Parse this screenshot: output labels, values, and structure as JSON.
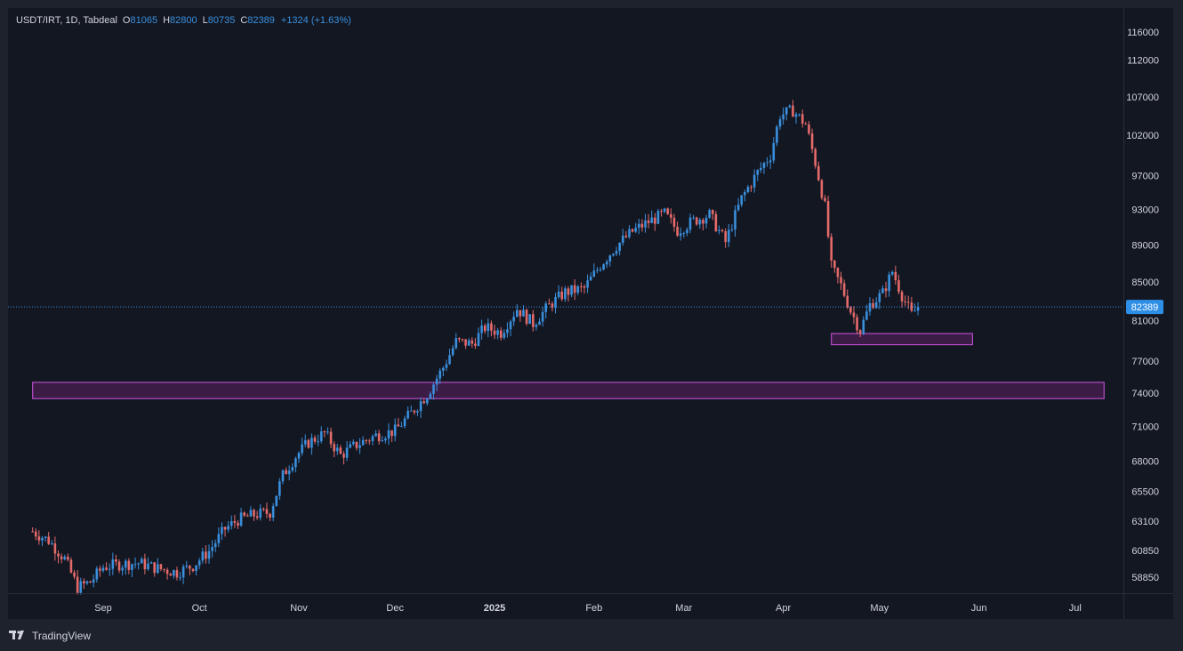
{
  "legend": {
    "symbol": "USDT/IRT, 1D, Tabdeal",
    "open_label": "O",
    "open": "81065",
    "high_label": "H",
    "high": "82800",
    "low_label": "L",
    "low": "80735",
    "close_label": "C",
    "close": "82389",
    "change": "+1324 (+1.63%)"
  },
  "footer": {
    "brand": "TradingView",
    "logo_icon": "tradingview-logo-icon"
  },
  "colors": {
    "up": "#3a8fdc",
    "down": "#e46a6a",
    "zone_fill": "#4a1f52",
    "zone_stroke": "#b44cc8",
    "last_price_bg": "#2e8fe6",
    "grid_text": "#d1d4dc",
    "bg": "#131722"
  },
  "chart_data": {
    "type": "candlestick",
    "title": "",
    "xlabel": "",
    "ylabel": "",
    "scale": "log",
    "grid": false,
    "y_ticks": [
      116000,
      112000,
      107000,
      102000,
      97000,
      93000,
      89000,
      85000,
      81000,
      77000,
      74000,
      71000,
      68000,
      65500,
      63100,
      60850,
      58850
    ],
    "x_ticks": [
      {
        "label": "Sep",
        "date": "2024-09-01"
      },
      {
        "label": "Oct",
        "date": "2024-10-01"
      },
      {
        "label": "Nov",
        "date": "2024-11-01"
      },
      {
        "label": "Dec",
        "date": "2024-12-01"
      },
      {
        "label": "2025",
        "date": "2025-01-01"
      },
      {
        "label": "Feb",
        "date": "2025-02-01"
      },
      {
        "label": "Mar",
        "date": "2025-03-01"
      },
      {
        "label": "Apr",
        "date": "2025-04-01"
      },
      {
        "label": "May",
        "date": "2025-05-01"
      },
      {
        "label": "Jun",
        "date": "2025-06-01"
      },
      {
        "label": "Jul",
        "date": "2025-07-01"
      }
    ],
    "x_range": [
      "2024-08-10",
      "2025-07-10"
    ],
    "last_price": 82389,
    "last_price_label": "82389",
    "zones": [
      {
        "name": "support-zone-wide",
        "from_date": "2024-08-10",
        "to_date": "2025-07-10",
        "low": 73500,
        "high": 75000
      },
      {
        "name": "support-zone-small",
        "from_date": "2025-04-16",
        "to_date": "2025-05-30",
        "low": 78600,
        "high": 79700
      }
    ],
    "series": [
      {
        "kind": "close_path",
        "points": [
          [
            "2024-08-10",
            62300
          ],
          [
            "2024-08-15",
            61600
          ],
          [
            "2024-08-20",
            60200
          ],
          [
            "2024-08-24",
            58100
          ],
          [
            "2024-08-28",
            58500
          ],
          [
            "2024-09-01",
            59600
          ],
          [
            "2024-09-06",
            59800
          ],
          [
            "2024-09-12",
            59900
          ],
          [
            "2024-09-18",
            59500
          ],
          [
            "2024-09-24",
            59200
          ],
          [
            "2024-09-29",
            59700
          ],
          [
            "2024-10-04",
            60800
          ],
          [
            "2024-10-09",
            62500
          ],
          [
            "2024-10-13",
            63200
          ],
          [
            "2024-10-18",
            63600
          ],
          [
            "2024-10-23",
            63800
          ],
          [
            "2024-10-27",
            66800
          ],
          [
            "2024-10-31",
            68400
          ],
          [
            "2024-11-04",
            69600
          ],
          [
            "2024-11-09",
            70400
          ],
          [
            "2024-11-14",
            68500
          ],
          [
            "2024-11-19",
            69400
          ],
          [
            "2024-11-25",
            70200
          ],
          [
            "2024-12-01",
            70600
          ],
          [
            "2024-12-06",
            72200
          ],
          [
            "2024-12-11",
            73900
          ],
          [
            "2024-12-16",
            76400
          ],
          [
            "2024-12-20",
            78900
          ],
          [
            "2024-12-25",
            78700
          ],
          [
            "2024-12-29",
            80300
          ],
          [
            "2025-01-03",
            79800
          ],
          [
            "2025-01-08",
            82200
          ],
          [
            "2025-01-13",
            80700
          ],
          [
            "2025-01-18",
            82500
          ],
          [
            "2025-01-23",
            83900
          ],
          [
            "2025-01-29",
            84300
          ],
          [
            "2025-02-03",
            86800
          ],
          [
            "2025-02-08",
            88900
          ],
          [
            "2025-02-13",
            90500
          ],
          [
            "2025-02-18",
            91600
          ],
          [
            "2025-02-23",
            92500
          ],
          [
            "2025-02-27",
            90600
          ],
          [
            "2025-03-04",
            91700
          ],
          [
            "2025-03-09",
            92400
          ],
          [
            "2025-03-14",
            89300
          ],
          [
            "2025-03-19",
            94300
          ],
          [
            "2025-03-24",
            97400
          ],
          [
            "2025-03-28",
            99500
          ],
          [
            "2025-03-31",
            104600
          ],
          [
            "2025-04-04",
            105200
          ],
          [
            "2025-04-08",
            103400
          ],
          [
            "2025-04-11",
            98600
          ],
          [
            "2025-04-14",
            93300
          ],
          [
            "2025-04-16",
            86600
          ],
          [
            "2025-04-19",
            84600
          ],
          [
            "2025-04-22",
            82000
          ],
          [
            "2025-04-25",
            80000
          ],
          [
            "2025-04-28",
            82600
          ],
          [
            "2025-05-02",
            83800
          ],
          [
            "2025-05-05",
            86100
          ],
          [
            "2025-05-08",
            83600
          ],
          [
            "2025-05-11",
            81600
          ],
          [
            "2025-05-13",
            82389
          ]
        ]
      }
    ]
  }
}
